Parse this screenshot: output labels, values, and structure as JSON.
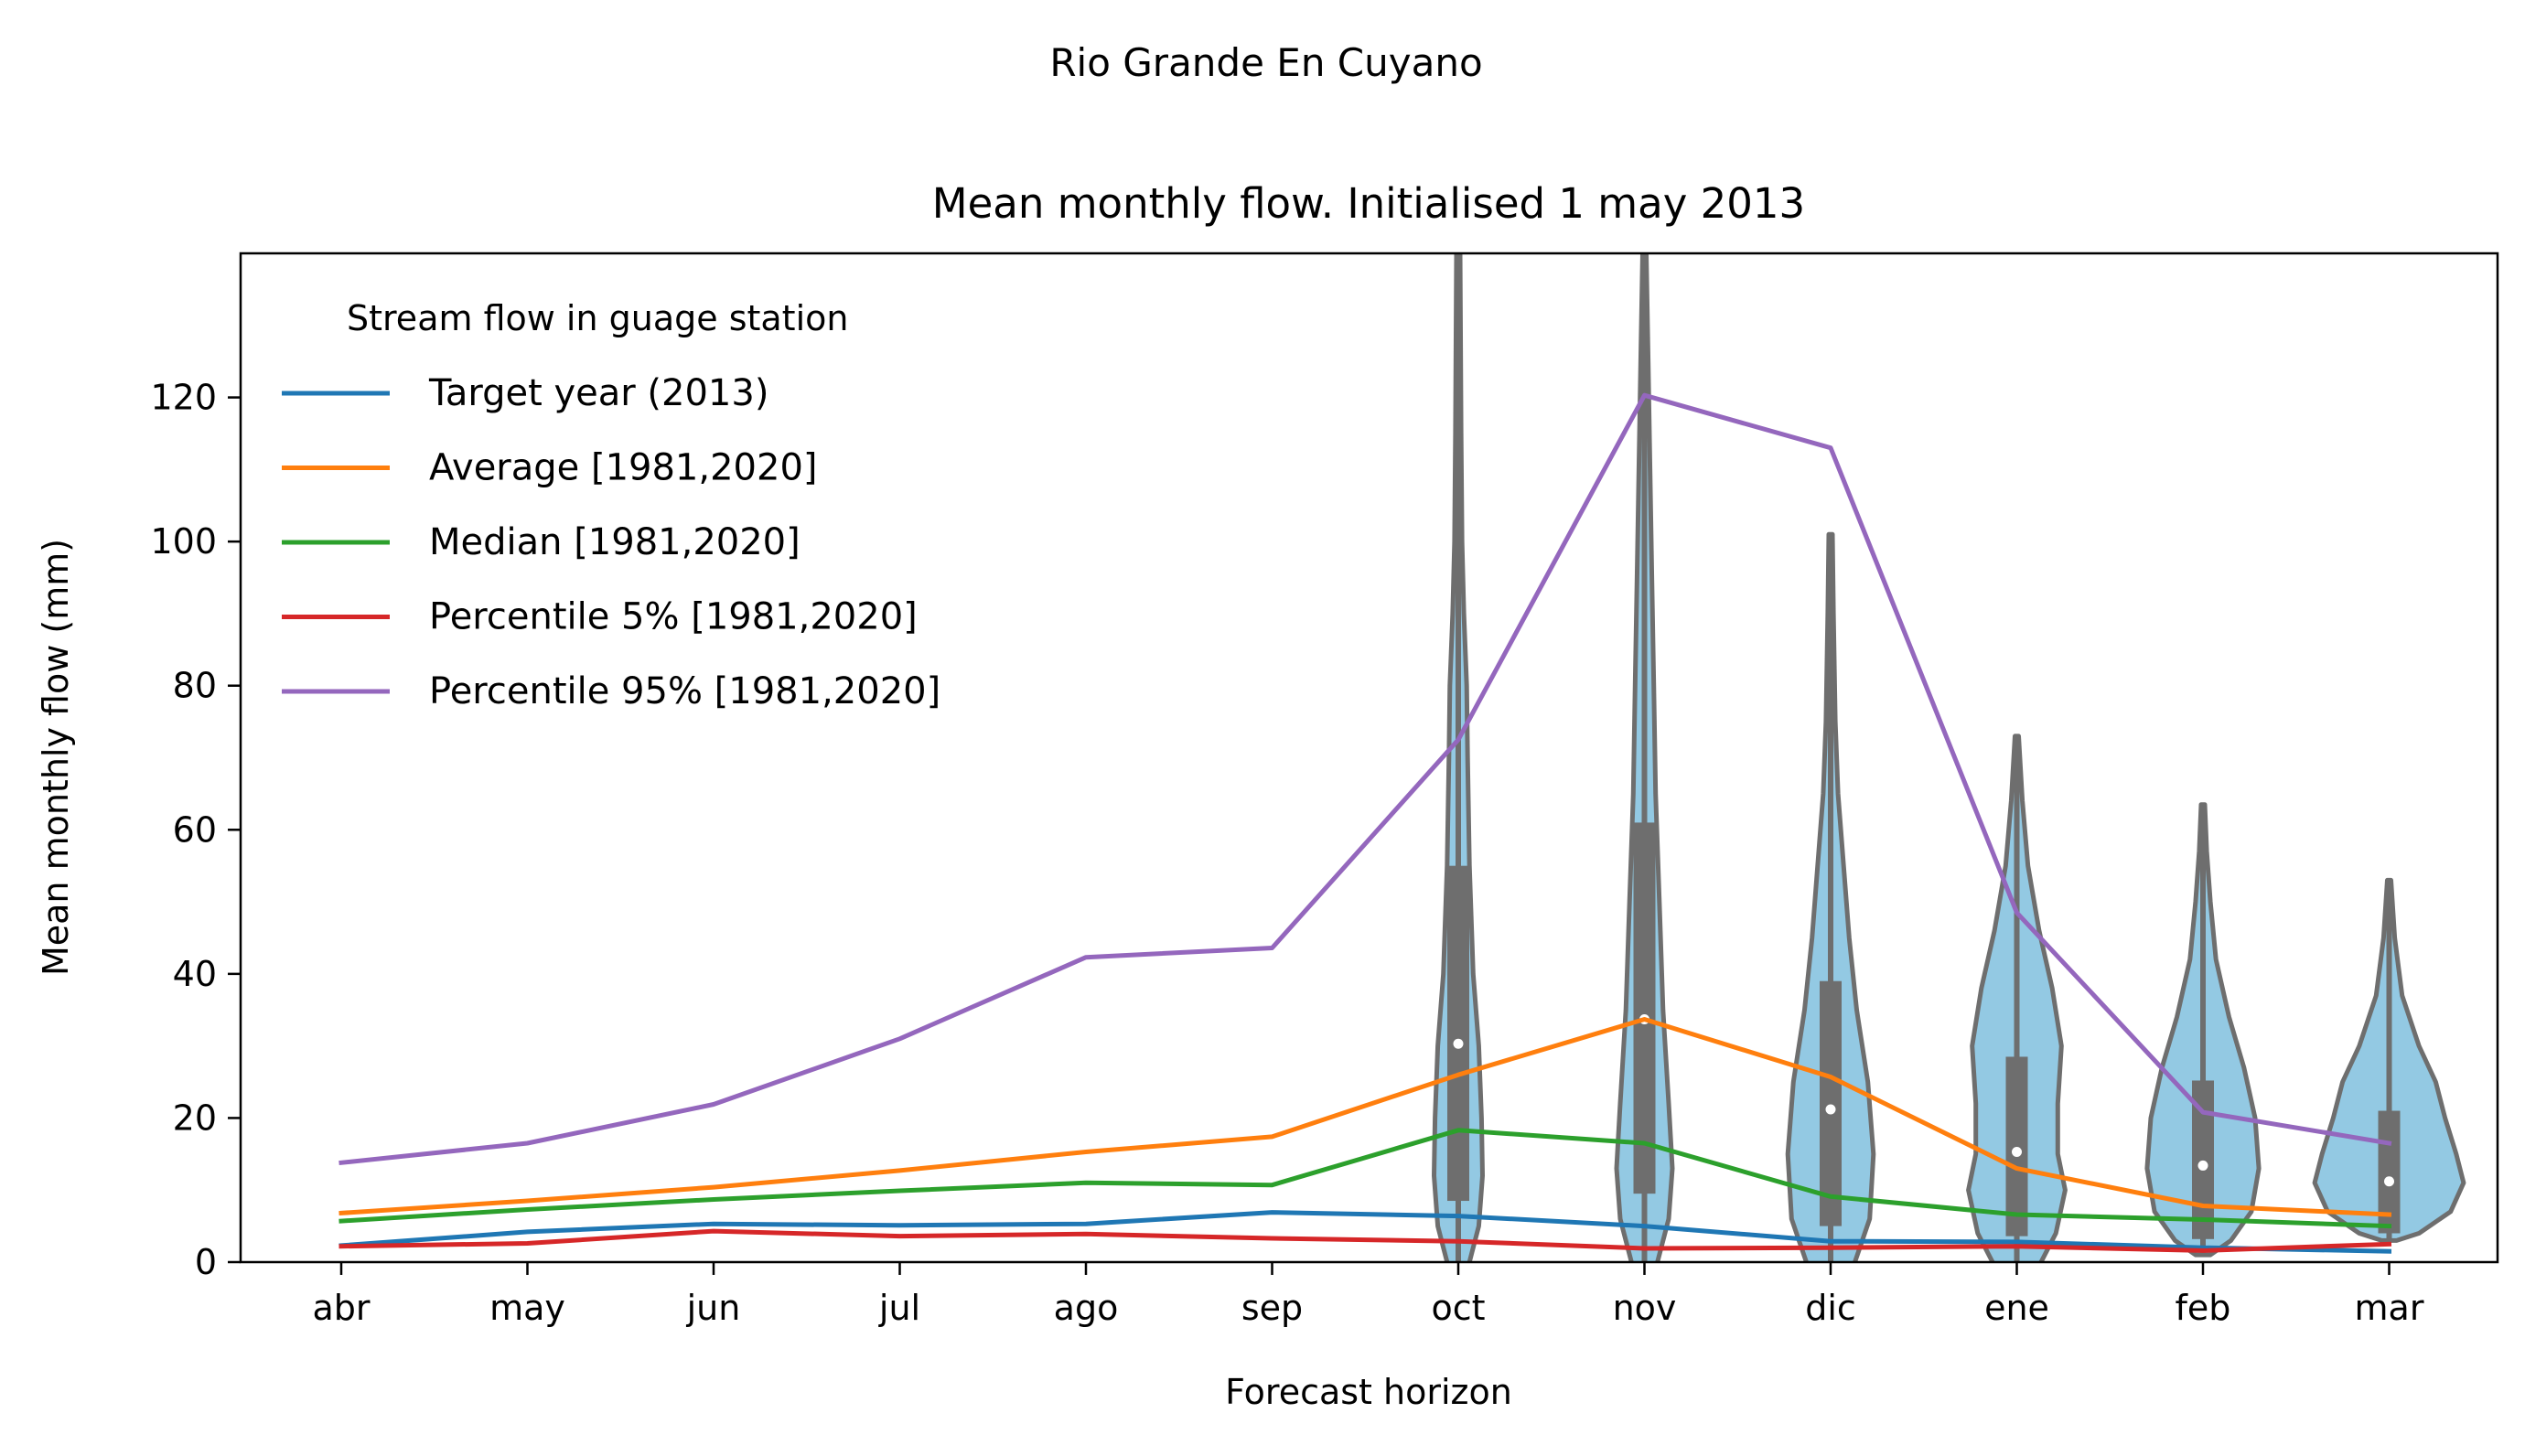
{
  "suptitle": "Rio Grande En Cuyano",
  "chart_data": {
    "type": "line",
    "title": "Mean monthly flow. Initialised 1 may 2013",
    "xlabel": "Forecast horizon",
    "ylabel": "Mean monthly flow (mm)",
    "ylim": [
      0,
      140
    ],
    "yticks": [
      0,
      20,
      40,
      60,
      80,
      100,
      120
    ],
    "categories": [
      "abr",
      "may",
      "jun",
      "jul",
      "ago",
      "sep",
      "oct",
      "nov",
      "dic",
      "ene",
      "feb",
      "mar"
    ],
    "grid": false,
    "legend": {
      "title": "Stream flow in guage station",
      "placement": "upper-left"
    },
    "series": [
      {
        "name": "Target year (2013)",
        "color": "#1f77b4",
        "values": [
          2.3,
          4.2,
          5.3,
          5.1,
          5.3,
          6.9,
          6.4,
          5.0,
          2.9,
          2.8,
          2.0,
          1.5
        ]
      },
      {
        "name": "Average [1981,2020]",
        "color": "#ff7f0e",
        "values": [
          6.8,
          8.5,
          10.4,
          12.7,
          15.3,
          17.4,
          26.0,
          33.7,
          25.7,
          13.0,
          7.8,
          6.6
        ]
      },
      {
        "name": "Median [1981,2020]",
        "color": "#2ca02c",
        "values": [
          5.7,
          7.3,
          8.7,
          9.9,
          11.0,
          10.7,
          18.3,
          16.5,
          9.1,
          6.6,
          5.9,
          5.0
        ]
      },
      {
        "name": "Percentile 5% [1981,2020]",
        "color": "#d62728",
        "values": [
          2.2,
          2.6,
          4.3,
          3.6,
          3.9,
          3.3,
          2.9,
          1.9,
          2.0,
          2.2,
          1.6,
          2.5
        ]
      },
      {
        "name": "Percentile 95% [1981,2020]",
        "color": "#9467bd",
        "values": [
          13.8,
          16.5,
          21.9,
          31.0,
          42.3,
          43.6,
          72.5,
          120.3,
          113.0,
          48.5,
          20.8,
          16.5
        ]
      }
    ],
    "violins": {
      "fill_color": "#93c9e3",
      "edge_color": "#6e6e6e",
      "items": [
        {
          "category": "oct",
          "min": -6,
          "max": 140,
          "q1": 8.5,
          "median": 30.3,
          "q3": 55.0,
          "profile": [
            [
              -6,
              0.03
            ],
            [
              0,
              0.06
            ],
            [
              5,
              0.11
            ],
            [
              12,
              0.13
            ],
            [
              20,
              0.125
            ],
            [
              30,
              0.11
            ],
            [
              40,
              0.08
            ],
            [
              55,
              0.06
            ],
            [
              70,
              0.05
            ],
            [
              80,
              0.045
            ],
            [
              90,
              0.03
            ],
            [
              100,
              0.02
            ],
            [
              115,
              0.015
            ],
            [
              140,
              0.01
            ]
          ]
        },
        {
          "category": "nov",
          "min": -4,
          "max": 140,
          "q1": 9.5,
          "median": 33.7,
          "q3": 61.0,
          "profile": [
            [
              -4,
              0.03
            ],
            [
              0,
              0.07
            ],
            [
              6,
              0.13
            ],
            [
              13,
              0.15
            ],
            [
              22,
              0.13
            ],
            [
              35,
              0.1
            ],
            [
              50,
              0.08
            ],
            [
              65,
              0.06
            ],
            [
              80,
              0.05
            ],
            [
              95,
              0.04
            ],
            [
              110,
              0.03
            ],
            [
              125,
              0.02
            ],
            [
              140,
              0.01
            ]
          ]
        },
        {
          "category": "dic",
          "min": -4,
          "max": 101,
          "q1": 5.0,
          "median": 21.2,
          "q3": 39.0,
          "profile": [
            [
              -4,
              0.05
            ],
            [
              0,
              0.13
            ],
            [
              6,
              0.21
            ],
            [
              15,
              0.23
            ],
            [
              25,
              0.2
            ],
            [
              35,
              0.14
            ],
            [
              45,
              0.1
            ],
            [
              55,
              0.07
            ],
            [
              65,
              0.04
            ],
            [
              75,
              0.025
            ],
            [
              90,
              0.015
            ],
            [
              101,
              0.01
            ]
          ]
        },
        {
          "category": "ene",
          "min": -2,
          "max": 73,
          "q1": 3.6,
          "median": 15.3,
          "q3": 28.5,
          "profile": [
            [
              -2,
              0.08
            ],
            [
              0,
              0.13
            ],
            [
              4,
              0.21
            ],
            [
              10,
              0.26
            ],
            [
              15,
              0.22
            ],
            [
              22,
              0.22
            ],
            [
              30,
              0.24
            ],
            [
              38,
              0.19
            ],
            [
              46,
              0.12
            ],
            [
              55,
              0.06
            ],
            [
              64,
              0.03
            ],
            [
              73,
              0.01
            ]
          ]
        },
        {
          "category": "feb",
          "min": 1,
          "max": 63.5,
          "q1": 3.2,
          "median": 13.4,
          "q3": 25.2,
          "profile": [
            [
              1,
              0.04
            ],
            [
              3,
              0.15
            ],
            [
              7,
              0.26
            ],
            [
              13,
              0.3
            ],
            [
              20,
              0.28
            ],
            [
              27,
              0.22
            ],
            [
              34,
              0.14
            ],
            [
              42,
              0.07
            ],
            [
              50,
              0.04
            ],
            [
              57,
              0.02
            ],
            [
              63.5,
              0.01
            ]
          ]
        },
        {
          "category": "mar",
          "min": 3,
          "max": 53,
          "q1": 4.0,
          "median": 11.2,
          "q3": 21.0,
          "profile": [
            [
              3,
              0.04
            ],
            [
              4,
              0.16
            ],
            [
              7,
              0.33
            ],
            [
              11,
              0.4
            ],
            [
              15,
              0.36
            ],
            [
              20,
              0.3
            ],
            [
              25,
              0.25
            ],
            [
              30,
              0.16
            ],
            [
              37,
              0.07
            ],
            [
              45,
              0.03
            ],
            [
              53,
              0.01
            ]
          ]
        }
      ]
    }
  }
}
